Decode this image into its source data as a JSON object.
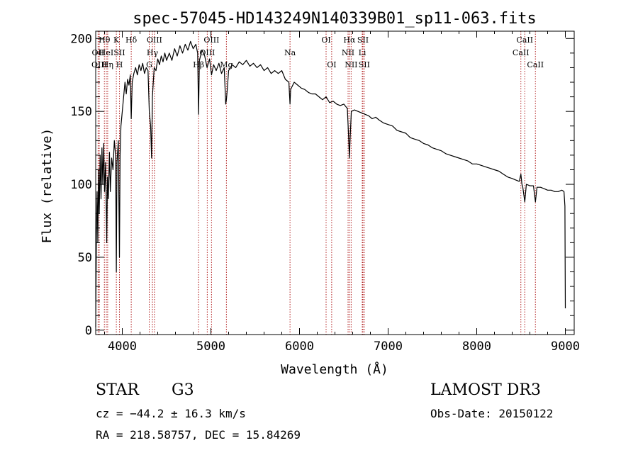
{
  "chart_data": {
    "type": "line",
    "title": "spec-57045-HD143249N140339B01_sp11-063.fits",
    "xlabel": "Wavelength (Å)",
    "ylabel": "Flux (relative)",
    "xlim": [
      3700,
      9100
    ],
    "ylim": [
      -3,
      205
    ],
    "x_ticks": [
      4000,
      5000,
      6000,
      7000,
      8000,
      9000
    ],
    "y_ticks": [
      0,
      50,
      100,
      150,
      200
    ],
    "grid": false,
    "legend": "none",
    "series": [
      {
        "name": "spectrum",
        "points": [
          [
            3700,
            2
          ],
          [
            3708,
            65
          ],
          [
            3716,
            95
          ],
          [
            3724,
            60
          ],
          [
            3732,
            110
          ],
          [
            3740,
            80
          ],
          [
            3750,
            120
          ],
          [
            3760,
            90
          ],
          [
            3770,
            125
          ],
          [
            3780,
            100
          ],
          [
            3790,
            128
          ],
          [
            3800,
            95
          ],
          [
            3812,
            115
          ],
          [
            3825,
            60
          ],
          [
            3833,
            105
          ],
          [
            3842,
            90
          ],
          [
            3855,
            122
          ],
          [
            3865,
            95
          ],
          [
            3880,
            118
          ],
          [
            3895,
            110
          ],
          [
            3910,
            130
          ],
          [
            3925,
            120
          ],
          [
            3933,
            40
          ],
          [
            3940,
            115
          ],
          [
            3955,
            130
          ],
          [
            3968,
            50
          ],
          [
            3975,
            120
          ],
          [
            3985,
            140
          ],
          [
            4000,
            150
          ],
          [
            4015,
            160
          ],
          [
            4030,
            170
          ],
          [
            4045,
            162
          ],
          [
            4060,
            172
          ],
          [
            4075,
            168
          ],
          [
            4090,
            175
          ],
          [
            4101,
            145
          ],
          [
            4112,
            170
          ],
          [
            4130,
            176
          ],
          [
            4150,
            180
          ],
          [
            4170,
            175
          ],
          [
            4190,
            182
          ],
          [
            4210,
            178
          ],
          [
            4230,
            183
          ],
          [
            4250,
            176
          ],
          [
            4270,
            180
          ],
          [
            4290,
            178
          ],
          [
            4305,
            150
          ],
          [
            4320,
            140
          ],
          [
            4330,
            118
          ],
          [
            4340,
            160
          ],
          [
            4360,
            180
          ],
          [
            4380,
            178
          ],
          [
            4400,
            186
          ],
          [
            4420,
            182
          ],
          [
            4440,
            188
          ],
          [
            4460,
            184
          ],
          [
            4480,
            190
          ],
          [
            4500,
            185
          ],
          [
            4530,
            190
          ],
          [
            4560,
            185
          ],
          [
            4590,
            193
          ],
          [
            4620,
            188
          ],
          [
            4650,
            195
          ],
          [
            4680,
            190
          ],
          [
            4710,
            196
          ],
          [
            4740,
            192
          ],
          [
            4770,
            198
          ],
          [
            4800,
            193
          ],
          [
            4830,
            196
          ],
          [
            4850,
            190
          ],
          [
            4861,
            148
          ],
          [
            4870,
            185
          ],
          [
            4900,
            192
          ],
          [
            4930,
            188
          ],
          [
            4957,
            180
          ],
          [
            4985,
            186
          ],
          [
            5007,
            175
          ],
          [
            5030,
            182
          ],
          [
            5060,
            178
          ],
          [
            5090,
            183
          ],
          [
            5120,
            176
          ],
          [
            5150,
            180
          ],
          [
            5167,
            155
          ],
          [
            5175,
            158
          ],
          [
            5185,
            165
          ],
          [
            5200,
            178
          ],
          [
            5240,
            182
          ],
          [
            5280,
            180
          ],
          [
            5320,
            184
          ],
          [
            5360,
            182
          ],
          [
            5400,
            185
          ],
          [
            5440,
            181
          ],
          [
            5480,
            183
          ],
          [
            5520,
            180
          ],
          [
            5560,
            182
          ],
          [
            5600,
            178
          ],
          [
            5640,
            180
          ],
          [
            5680,
            176
          ],
          [
            5720,
            178
          ],
          [
            5760,
            176
          ],
          [
            5800,
            178
          ],
          [
            5840,
            172
          ],
          [
            5880,
            170
          ],
          [
            5893,
            155
          ],
          [
            5900,
            165
          ],
          [
            5940,
            170
          ],
          [
            5980,
            168
          ],
          [
            6020,
            166
          ],
          [
            6060,
            165
          ],
          [
            6100,
            163
          ],
          [
            6140,
            162
          ],
          [
            6180,
            162
          ],
          [
            6220,
            160
          ],
          [
            6260,
            158
          ],
          [
            6300,
            160
          ],
          [
            6340,
            156
          ],
          [
            6380,
            157
          ],
          [
            6420,
            155
          ],
          [
            6460,
            154
          ],
          [
            6500,
            155
          ],
          [
            6540,
            152
          ],
          [
            6556,
            130
          ],
          [
            6563,
            118
          ],
          [
            6570,
            130
          ],
          [
            6585,
            150
          ],
          [
            6620,
            151
          ],
          [
            6660,
            150
          ],
          [
            6700,
            149
          ],
          [
            6740,
            148
          ],
          [
            6780,
            147
          ],
          [
            6820,
            145
          ],
          [
            6860,
            146
          ],
          [
            6900,
            144
          ],
          [
            6950,
            142
          ],
          [
            7000,
            141
          ],
          [
            7050,
            140
          ],
          [
            7100,
            137
          ],
          [
            7150,
            136
          ],
          [
            7200,
            135
          ],
          [
            7250,
            132
          ],
          [
            7300,
            131
          ],
          [
            7350,
            130
          ],
          [
            7400,
            128
          ],
          [
            7450,
            127
          ],
          [
            7500,
            125
          ],
          [
            7550,
            124
          ],
          [
            7600,
            123
          ],
          [
            7650,
            121
          ],
          [
            7700,
            120
          ],
          [
            7750,
            119
          ],
          [
            7800,
            118
          ],
          [
            7850,
            117
          ],
          [
            7900,
            116
          ],
          [
            7950,
            114
          ],
          [
            8000,
            114
          ],
          [
            8050,
            113
          ],
          [
            8100,
            112
          ],
          [
            8150,
            111
          ],
          [
            8200,
            110
          ],
          [
            8250,
            109
          ],
          [
            8300,
            107
          ],
          [
            8350,
            105
          ],
          [
            8400,
            104
          ],
          [
            8440,
            103
          ],
          [
            8480,
            102
          ],
          [
            8498,
            107
          ],
          [
            8510,
            100
          ],
          [
            8520,
            98
          ],
          [
            8542,
            88
          ],
          [
            8560,
            100
          ],
          [
            8600,
            99
          ],
          [
            8640,
            99
          ],
          [
            8662,
            88
          ],
          [
            8680,
            98
          ],
          [
            8720,
            98
          ],
          [
            8760,
            97
          ],
          [
            8800,
            96
          ],
          [
            8840,
            96
          ],
          [
            8880,
            95
          ],
          [
            8920,
            95
          ],
          [
            8960,
            96
          ],
          [
            8985,
            95
          ],
          [
            8995,
            85
          ],
          [
            9000,
            15
          ]
        ]
      }
    ],
    "lines": [
      {
        "label": "Hθ",
        "wavelength": 3798,
        "row": 1
      },
      {
        "label": "OII",
        "wavelength": 3727,
        "row": 2
      },
      {
        "label": "OIII",
        "wavelength": 3740,
        "row": 3
      },
      {
        "label": "HeI",
        "wavelength": 3820,
        "row": 2
      },
      {
        "label": "Hη",
        "wavelength": 3835,
        "row": 3
      },
      {
        "label": "K",
        "wavelength": 3933,
        "row": 1
      },
      {
        "label": "SII",
        "wavelength": 3968,
        "row": 2
      },
      {
        "label": "H",
        "wavelength": 3968,
        "row": 3
      },
      {
        "label": "Hδ",
        "wavelength": 4101,
        "row": 1
      },
      {
        "label": "OIII",
        "wavelength": 4363,
        "row": 1
      },
      {
        "label": "Hγ",
        "wavelength": 4340,
        "row": 2
      },
      {
        "label": "G",
        "wavelength": 4304,
        "row": 3
      },
      {
        "label": "OIII",
        "wavelength": 5007,
        "row": 1
      },
      {
        "label": "OIII",
        "wavelength": 4959,
        "row": 2
      },
      {
        "label": "Hβ",
        "wavelength": 4861,
        "row": 3
      },
      {
        "label": "Mg",
        "wavelength": 5175,
        "row": 3
      },
      {
        "label": "Na",
        "wavelength": 5893,
        "row": 2
      },
      {
        "label": "OI",
        "wavelength": 6300,
        "row": 1
      },
      {
        "label": "OI",
        "wavelength": 6363,
        "row": 3
      },
      {
        "label": "Hα",
        "wavelength": 6563,
        "row": 1
      },
      {
        "label": "NII",
        "wavelength": 6548,
        "row": 2
      },
      {
        "label": "NII",
        "wavelength": 6583,
        "row": 3
      },
      {
        "label": "SII",
        "wavelength": 6716,
        "row": 1
      },
      {
        "label": "Li",
        "wavelength": 6708,
        "row": 2
      },
      {
        "label": "SII",
        "wavelength": 6731,
        "row": 3
      },
      {
        "label": "CaII",
        "wavelength": 8542,
        "row": 1
      },
      {
        "label": "CaII",
        "wavelength": 8498,
        "row": 2
      },
      {
        "label": "CaII",
        "wavelength": 8662,
        "row": 3
      }
    ],
    "line_color": "#b22222"
  },
  "info": {
    "object_class": "STAR",
    "subclass": "G3",
    "cz": "cz = −44.2 ± 16.3 km/s",
    "coords": "RA = 218.58757, DEC =  15.84269",
    "survey": "LAMOST DR3",
    "obs_date": "Obs-Date: 20150122"
  }
}
